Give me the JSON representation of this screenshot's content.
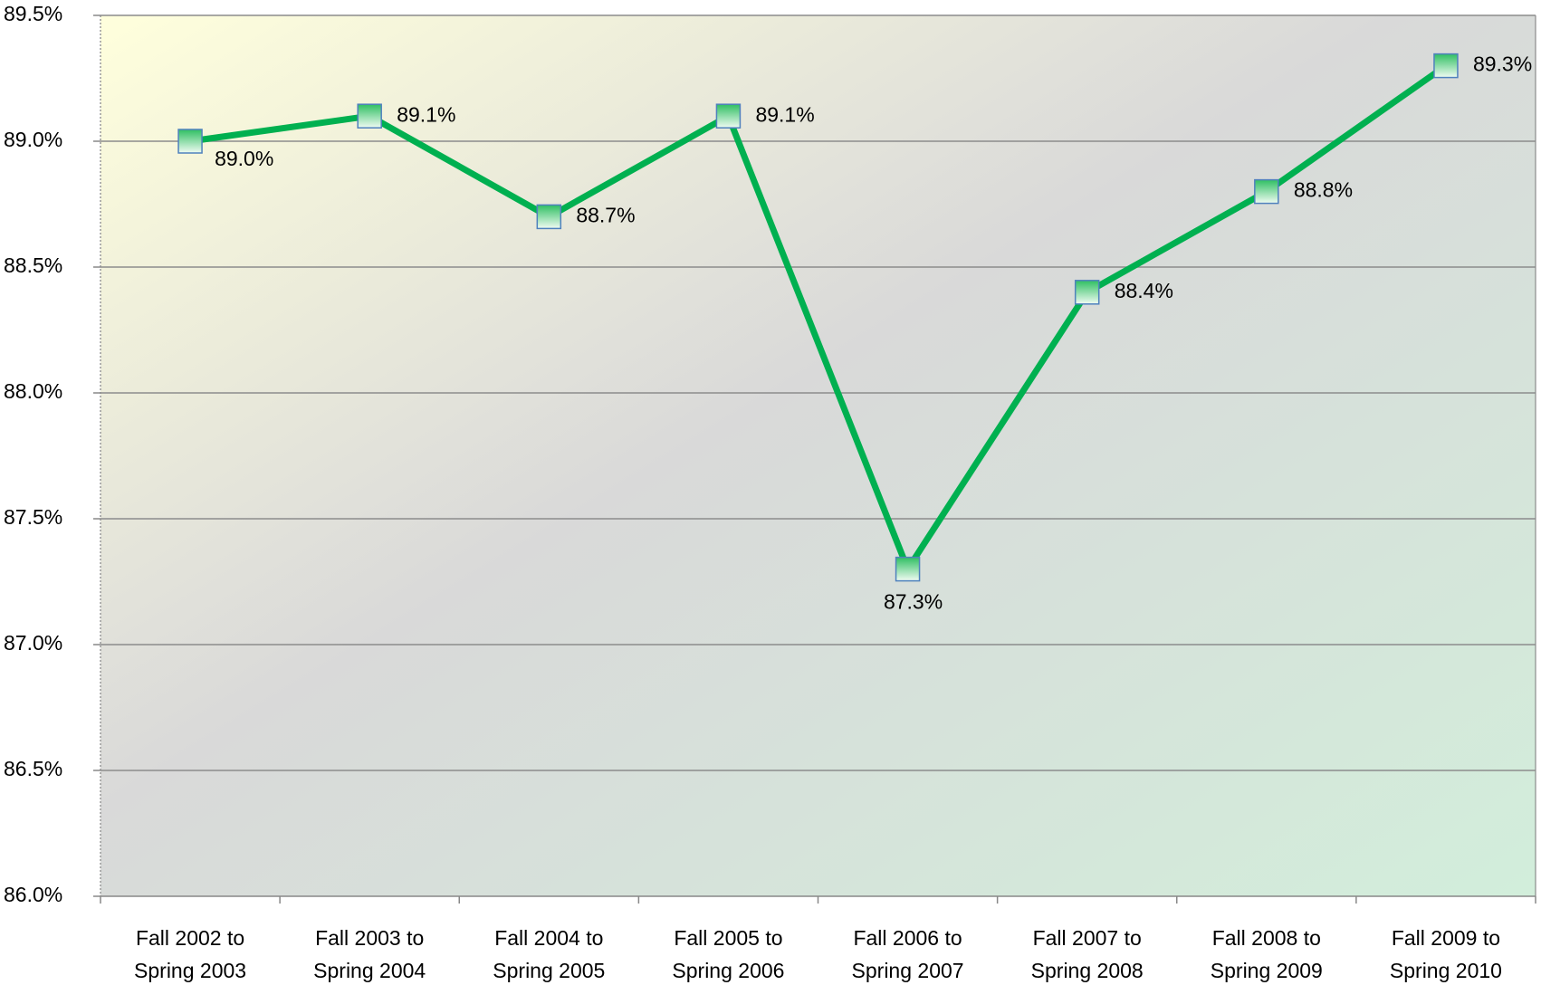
{
  "chart_data": {
    "type": "line",
    "categories": [
      "Fall 2002 to Spring 2003",
      "Fall 2003 to Spring 2004",
      "Fall 2004 to Spring 2005",
      "Fall 2005 to Spring 2006",
      "Fall 2006 to Spring 2007",
      "Fall 2007 to Spring 2008",
      "Fall 2008 to Spring 2009",
      "Fall 2009 to Spring 2010"
    ],
    "series": [
      {
        "color": "#00b050",
        "values": [
          89.0,
          89.1,
          88.7,
          89.1,
          87.3,
          88.4,
          88.8,
          89.3
        ],
        "value_labels": [
          "89.0%",
          "89.1%",
          "88.7%",
          "89.1%",
          "87.3%",
          "88.4%",
          "88.8%",
          "89.3%"
        ]
      }
    ],
    "ylim": [
      86.0,
      89.5
    ],
    "yticks": [
      {
        "value": 86.0,
        "label": "86.0%"
      },
      {
        "value": 86.5,
        "label": "86.5%"
      },
      {
        "value": 87.0,
        "label": "87.0%"
      },
      {
        "value": 87.5,
        "label": "87.5%"
      },
      {
        "value": 88.0,
        "label": "88.0%"
      },
      {
        "value": 88.5,
        "label": "88.5%"
      },
      {
        "value": 89.0,
        "label": "89.0%"
      },
      {
        "value": 89.5,
        "label": "89.5%"
      }
    ],
    "grid": true
  }
}
